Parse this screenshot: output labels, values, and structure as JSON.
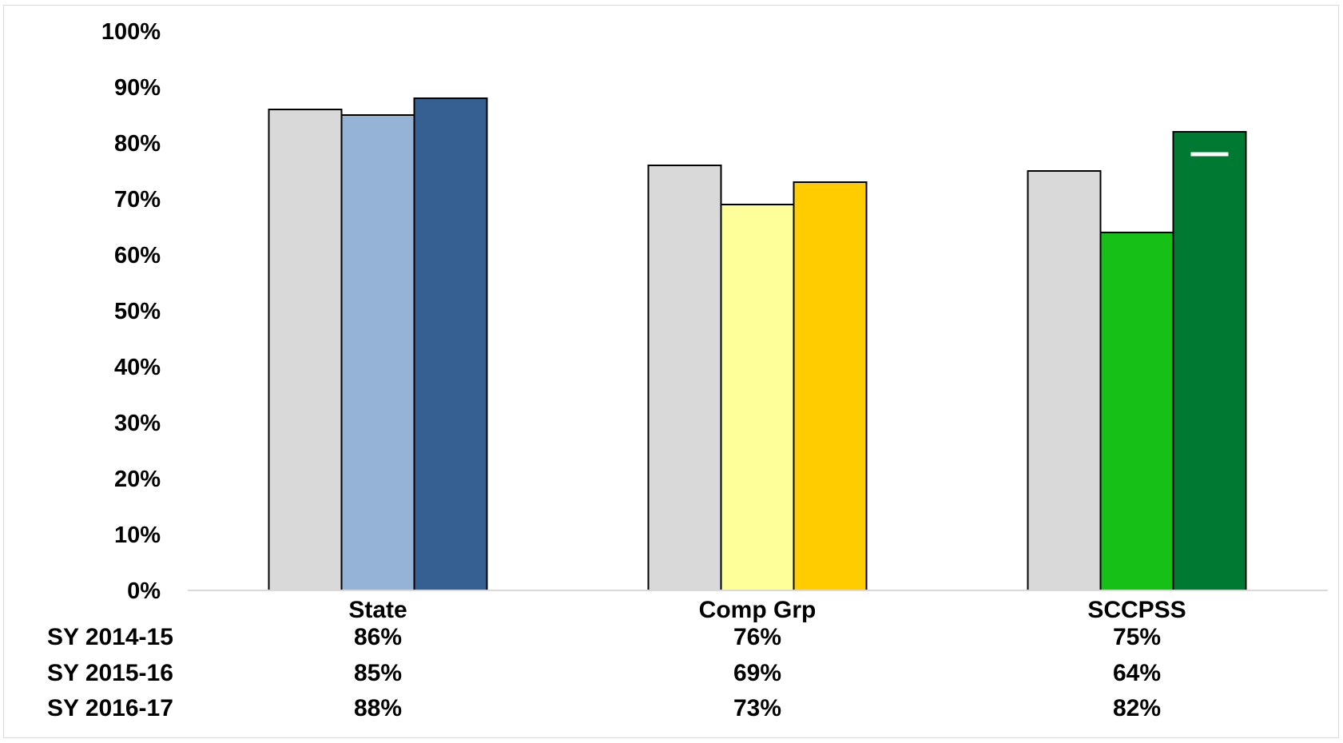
{
  "chart_data": {
    "type": "bar",
    "categories": [
      "State",
      "Comp Grp",
      "SCCPSS"
    ],
    "series": [
      {
        "name": "SY 2014-15",
        "values": [
          86,
          76,
          75
        ]
      },
      {
        "name": "SY 2015-16",
        "values": [
          85,
          69,
          64
        ]
      },
      {
        "name": "SY 2016-17",
        "values": [
          88,
          73,
          82
        ]
      }
    ],
    "value_labels": [
      [
        "86%",
        "76%",
        "75%"
      ],
      [
        "85%",
        "69%",
        "64%"
      ],
      [
        "88%",
        "73%",
        "82%"
      ]
    ],
    "bar_colors": [
      [
        "#d9d9d9",
        "#95b3d7",
        "#366092"
      ],
      [
        "#d9d9d9",
        "#ffff99",
        "#ffcc00"
      ],
      [
        "#d9d9d9",
        "#16c016",
        "#007a33"
      ]
    ],
    "y_ticks": [
      "0%",
      "10%",
      "20%",
      "30%",
      "40%",
      "50%",
      "60%",
      "70%",
      "80%",
      "90%",
      "100%"
    ],
    "ylim": [
      0,
      100
    ],
    "title": "",
    "xlabel": "",
    "ylabel": "",
    "grid": false,
    "legend": "data table below chart",
    "marker_line": {
      "category": "SCCPSS",
      "series": "SY 2016-17",
      "value": 78,
      "color": "#ffffff"
    }
  }
}
